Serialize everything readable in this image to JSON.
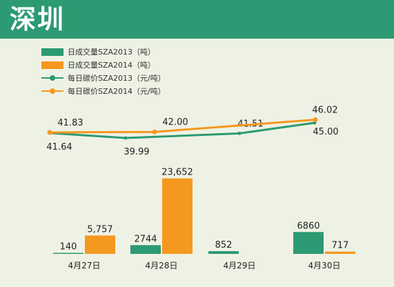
{
  "header": {
    "title": "深圳"
  },
  "colors": {
    "title_bg": "#2c9a72",
    "green": "#2c9a72",
    "orange": "#f5981f",
    "bg": "#eef2e4"
  },
  "legend": [
    {
      "label": "日成交量SZA2013（吨）",
      "kind": "bar",
      "color": "#2c9a72"
    },
    {
      "label": "日成交量SZA2014（吨）",
      "kind": "bar",
      "color": "#f5981f"
    },
    {
      "label": "每日碳价SZA2013（元/吨）",
      "kind": "line",
      "color": "#2c9a72"
    },
    {
      "label": "每日碳价SZA2014（元/吨）",
      "kind": "line",
      "color": "#f5981f"
    }
  ],
  "chart_data": {
    "type": "bar",
    "categories": [
      "4月27日",
      "4月28日",
      "4月29日",
      "4月30日"
    ],
    "bar_series": [
      {
        "name": "日成交量SZA2013（吨）",
        "values": [
          140,
          2744,
          852,
          6860
        ],
        "labels": [
          "140",
          "2744",
          "852",
          "6860"
        ]
      },
      {
        "name": "日成交量SZA2014（吨）",
        "values": [
          5757,
          23652,
          null,
          717
        ],
        "labels": [
          "5,757",
          "23,652",
          "",
          "717"
        ]
      }
    ],
    "line_series": [
      {
        "name": "每日碳价SZA2013（元/吨）",
        "values": [
          41.64,
          39.99,
          41.51,
          45.0
        ],
        "labels": [
          "41.64",
          "39.99",
          "41.51",
          "45.00"
        ]
      },
      {
        "name": "每日碳价SZA2014（元/吨）",
        "values": [
          41.83,
          42.0,
          null,
          46.02
        ],
        "labels": [
          "41.83",
          "42.00",
          "",
          "46.02"
        ]
      }
    ],
    "line_ylim": [
      39,
      47
    ],
    "bar_ylim": [
      0,
      24000
    ]
  }
}
